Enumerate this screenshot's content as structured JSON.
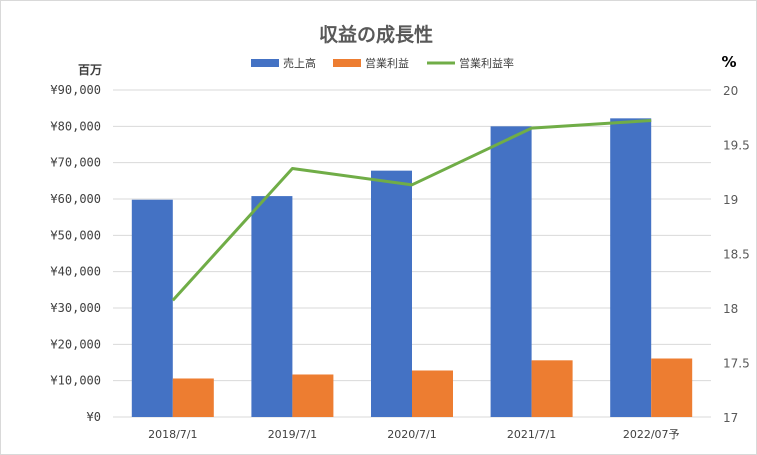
{
  "chart_data": {
    "type": "bar",
    "title": "収益の成長性",
    "categories": [
      "2018/7/1",
      "2019/7/1",
      "2020/7/1",
      "2021/7/1",
      "2022/07予"
    ],
    "series": [
      {
        "name": "売上高",
        "kind": "bar",
        "axis": "left",
        "color": "#4472C4",
        "values": [
          59800,
          60800,
          67800,
          80000,
          82200
        ]
      },
      {
        "name": "営業利益",
        "kind": "bar",
        "axis": "left",
        "color": "#ED7D31",
        "values": [
          10600,
          11700,
          12800,
          15600,
          16100
        ]
      },
      {
        "name": "営業利益率",
        "kind": "line",
        "axis": "right",
        "color": "#70AD47",
        "values": [
          18.07,
          19.28,
          19.13,
          19.65,
          19.72
        ]
      }
    ],
    "y_left": {
      "unit_label": "百万",
      "range": [
        0,
        90000
      ],
      "ticks": [
        {
          "value": 0,
          "label": "¥0"
        },
        {
          "value": 10000,
          "label": "¥10,000"
        },
        {
          "value": 20000,
          "label": "¥20,000"
        },
        {
          "value": 30000,
          "label": "¥30,000"
        },
        {
          "value": 40000,
          "label": "¥40,000"
        },
        {
          "value": 50000,
          "label": "¥50,000"
        },
        {
          "value": 60000,
          "label": "¥60,000"
        },
        {
          "value": 70000,
          "label": "¥70,000"
        },
        {
          "value": 80000,
          "label": "¥80,000"
        },
        {
          "value": 90000,
          "label": "¥90,000"
        }
      ]
    },
    "y_right": {
      "unit_label": "%",
      "range": [
        17,
        20
      ],
      "ticks": [
        {
          "value": 17,
          "label": "17"
        },
        {
          "value": 17.5,
          "label": "17.5"
        },
        {
          "value": 18,
          "label": "18"
        },
        {
          "value": 18.5,
          "label": "18.5"
        },
        {
          "value": 19,
          "label": "19"
        },
        {
          "value": 19.5,
          "label": "19.5"
        },
        {
          "value": 20,
          "label": "20"
        }
      ]
    },
    "grid": true,
    "legend_position": "top"
  }
}
